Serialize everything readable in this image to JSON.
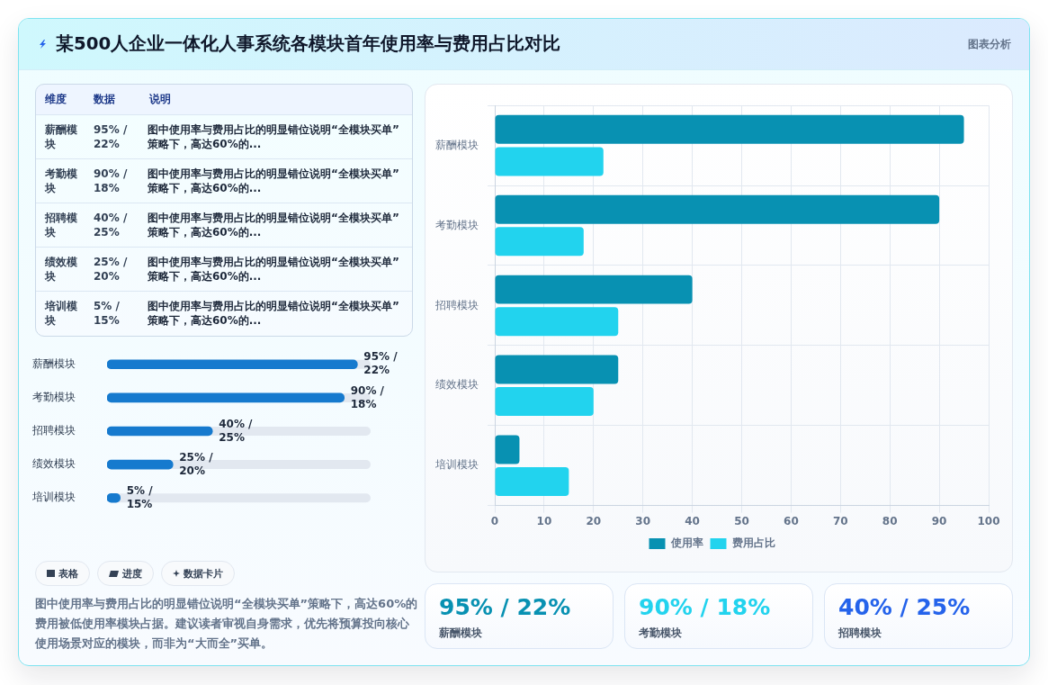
{
  "chart_data": [
    {
      "type": "bar",
      "title": "某500人企业一体化人事系统各模块首年使用率与费用占比对比",
      "orientation": "horizontal",
      "categories": [
        "薪酬模块",
        "考勤模块",
        "招聘模块",
        "绩效模块",
        "培训模块"
      ],
      "series": [
        {
          "name": "使用率",
          "color": "#0891b2",
          "values": [
            95,
            90,
            40,
            25,
            5
          ]
        },
        {
          "name": "费用占比",
          "color": "#22d3ee",
          "values": [
            22,
            18,
            25,
            20,
            15
          ]
        }
      ],
      "xlim": [
        0,
        100
      ],
      "xticks": [
        0,
        10,
        20,
        30,
        40,
        50,
        60,
        70,
        80,
        90,
        100
      ],
      "grid": true,
      "legend": "bottom",
      "annotations": [
        "图表分析",
        "表格",
        "进度",
        "数据卡片",
        "图中使用率与费用占比的明显错位说明“全模块买单”策略下，高达60%的费用被低使用率模块占据。建议读者审视自身需求，优先将预算投向核心使用场景对应的模块，而非为“大而全”买单。"
      ]
    },
    {
      "type": "other",
      "annotations": [
        "维度",
        "数据",
        "说明",
        "薪酬模块",
        "95% / 22%",
        "图中使用率与费用占比的明显错位说明“全模块买单”策略下，高达60%的...",
        "考勤模块",
        "90% / 18%",
        "图中使用率与费用占比的明显错位说明“全模块买单”策略下，高达60%的...",
        "招聘模块",
        "40% / 25%",
        "图中使用率与费用占比的明显错位说明“全模块买单”策略下，高达60%的...",
        "绩效模块",
        "25% / 20%",
        "图中使用率与费用占比的明显错位说明“全模块买单”策略下，高达60%的...",
        "培训模块",
        "5% / 15%",
        "图中使用率与费用占比的明显错位说明“全模块买单”策略下，高达60%的..."
      ]
    },
    {
      "type": "bar",
      "orientation": "horizontal",
      "categories": [
        "薪酬模块",
        "考勤模块",
        "招聘模块",
        "绩效模块",
        "培训模块"
      ],
      "values": [
        95,
        90,
        40,
        25,
        5
      ],
      "value_labels": [
        "95% / 22%",
        "90% / 18%",
        "40% / 25%",
        "25% / 20%",
        "5% / 15%"
      ],
      "color": "#167ace",
      "xlim": [
        0,
        100
      ],
      "tick_labels": "y"
    },
    {
      "type": "other",
      "categories": [
        "薪酬模块",
        "考勤模块",
        "招聘模块"
      ],
      "value_labels": [
        "95% / 22%",
        "90% / 18%",
        "40% / 25%"
      ]
    }
  ]
}
